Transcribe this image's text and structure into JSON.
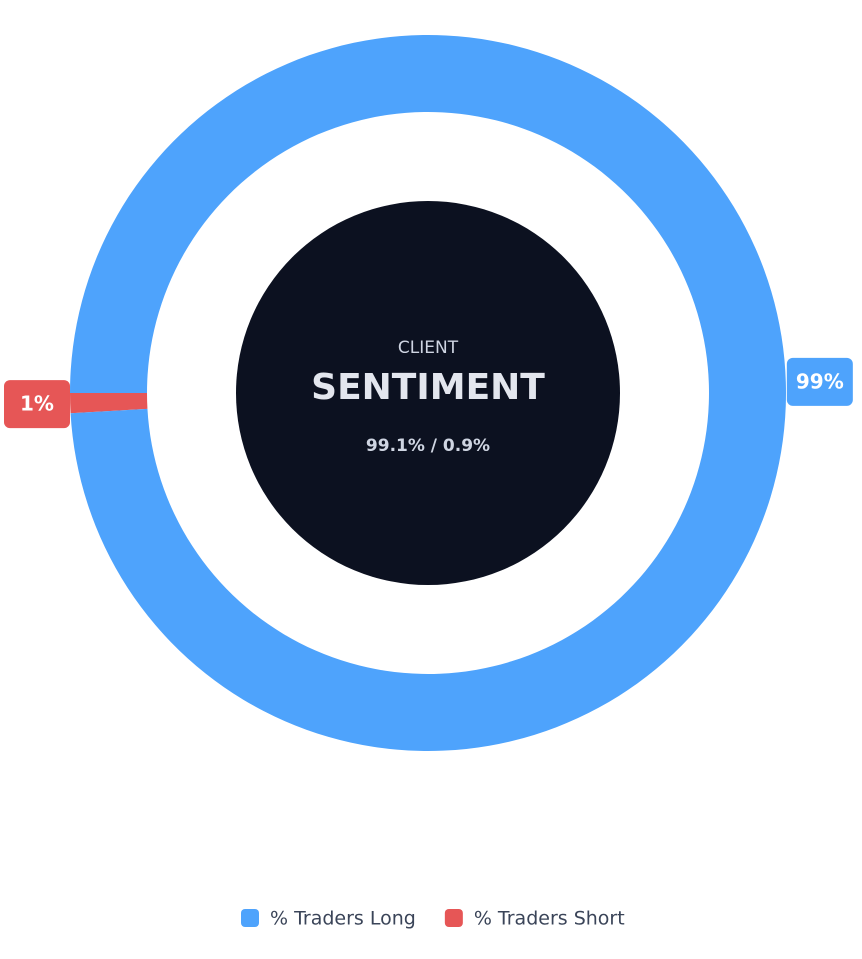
{
  "chart_data": {
    "type": "donut",
    "center_texts": [
      "CLIENT",
      "SENTIMENT",
      "99.1% / 0.9%"
    ],
    "categories": [
      "% Traders Long",
      "% Traders Short"
    ],
    "values": [
      99.1,
      0.9
    ],
    "value_labels": [
      "99%",
      "1%"
    ],
    "colors": [
      "#4ea3fc",
      "#e65656"
    ],
    "legend": "bottom"
  }
}
